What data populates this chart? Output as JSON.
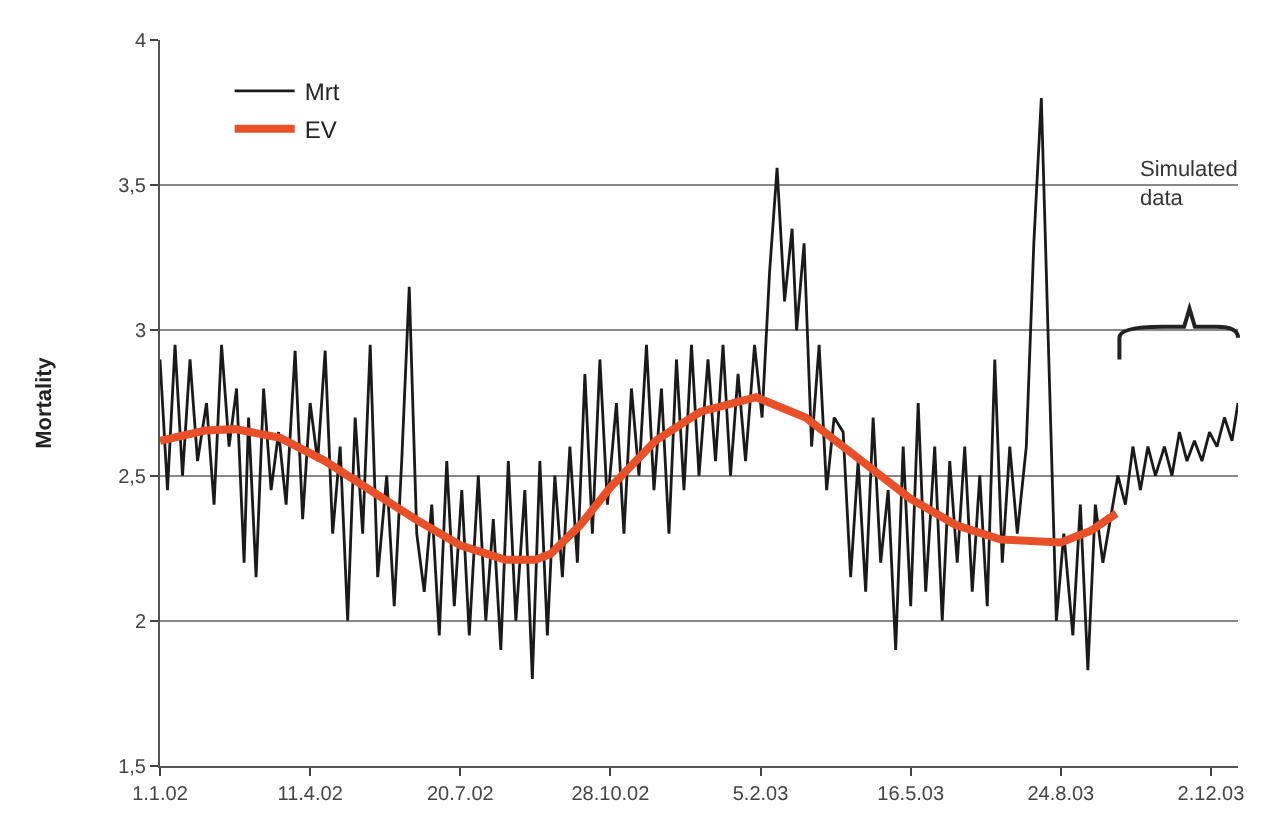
{
  "chart_data": {
    "type": "line",
    "ylabel": "Mortality",
    "annotations": [
      "Simulated data"
    ],
    "xlim": [
      "2002-01-01",
      "2003-12-20"
    ],
    "xticks": [
      {
        "value": "2002-01-01",
        "label": "1.1.02"
      },
      {
        "value": "2002-04-11",
        "label": "11.4.02"
      },
      {
        "value": "2002-07-20",
        "label": "20.7.02"
      },
      {
        "value": "2002-10-28",
        "label": "28.10.02"
      },
      {
        "value": "2003-02-05",
        "label": "5.2.03"
      },
      {
        "value": "2003-05-16",
        "label": "16.5.03"
      },
      {
        "value": "2003-08-24",
        "label": "24.8.03"
      },
      {
        "value": "2003-12-02",
        "label": "2.12.03"
      }
    ],
    "ylim": [
      1.5,
      4
    ],
    "yticks": [
      {
        "value": 1.5,
        "label": "1,5"
      },
      2,
      {
        "value": 2.5,
        "label": "2,5"
      },
      3,
      {
        "value": 3.5,
        "label": "3,5"
      },
      4
    ],
    "grid": "y",
    "legend": "top left",
    "marker": "none",
    "line_style": "solid",
    "series": [
      {
        "name": "Mrt",
        "color": "#1a1a1a",
        "x": [
          "2002-01-01",
          "2002-01-06",
          "2002-01-11",
          "2002-01-16",
          "2002-01-21",
          "2002-01-26",
          "2002-02-01",
          "2002-02-06",
          "2002-02-11",
          "2002-02-16",
          "2002-02-21",
          "2002-02-26",
          "2002-03-01",
          "2002-03-06",
          "2002-03-11",
          "2002-03-16",
          "2002-03-21",
          "2002-03-26",
          "2002-04-01",
          "2002-04-06",
          "2002-04-11",
          "2002-04-16",
          "2002-04-21",
          "2002-04-26",
          "2002-05-01",
          "2002-05-06",
          "2002-05-11",
          "2002-05-16",
          "2002-05-21",
          "2002-05-26",
          "2002-06-01",
          "2002-06-06",
          "2002-06-11",
          "2002-06-16",
          "2002-06-21",
          "2002-06-26",
          "2002-07-01",
          "2002-07-06",
          "2002-07-11",
          "2002-07-16",
          "2002-07-21",
          "2002-07-26",
          "2002-08-01",
          "2002-08-06",
          "2002-08-11",
          "2002-08-16",
          "2002-08-21",
          "2002-08-26",
          "2002-09-01",
          "2002-09-06",
          "2002-09-11",
          "2002-09-16",
          "2002-09-21",
          "2002-09-26",
          "2002-10-01",
          "2002-10-06",
          "2002-10-11",
          "2002-10-16",
          "2002-10-21",
          "2002-10-26",
          "2002-11-01",
          "2002-11-06",
          "2002-11-11",
          "2002-11-16",
          "2002-11-21",
          "2002-11-26",
          "2002-12-01",
          "2002-12-06",
          "2002-12-11",
          "2002-12-16",
          "2002-12-21",
          "2002-12-26",
          "2003-01-01",
          "2003-01-06",
          "2003-01-11",
          "2003-01-16",
          "2003-01-21",
          "2003-01-26",
          "2003-02-01",
          "2003-02-06",
          "2003-02-11",
          "2003-02-16",
          "2003-02-21",
          "2003-02-26",
          "2003-03-01",
          "2003-03-06",
          "2003-03-11",
          "2003-03-16",
          "2003-03-21",
          "2003-03-26",
          "2003-04-01",
          "2003-04-06",
          "2003-04-11",
          "2003-04-16",
          "2003-04-21",
          "2003-04-26",
          "2003-05-01",
          "2003-05-06",
          "2003-05-11",
          "2003-05-16",
          "2003-05-21",
          "2003-05-26",
          "2003-06-01",
          "2003-06-06",
          "2003-06-11",
          "2003-06-16",
          "2003-06-21",
          "2003-06-26",
          "2003-07-01",
          "2003-07-06",
          "2003-07-11",
          "2003-07-16",
          "2003-07-21",
          "2003-07-26",
          "2003-08-01",
          "2003-08-06",
          "2003-08-11",
          "2003-08-16",
          "2003-08-21",
          "2003-08-26",
          "2003-09-01",
          "2003-09-06",
          "2003-09-11",
          "2003-09-16",
          "2003-09-21",
          "2003-09-26",
          "2003-10-01",
          "2003-10-06",
          "2003-10-11",
          "2003-10-16",
          "2003-10-21",
          "2003-10-26",
          "2003-11-01",
          "2003-11-06",
          "2003-11-11",
          "2003-11-16",
          "2003-11-21",
          "2003-11-26",
          "2003-12-01",
          "2003-12-06",
          "2003-12-11",
          "2003-12-16",
          "2003-12-20"
        ],
        "values": [
          2.9,
          2.45,
          2.95,
          2.5,
          2.9,
          2.55,
          2.75,
          2.4,
          2.95,
          2.6,
          2.8,
          2.2,
          2.7,
          2.15,
          2.8,
          2.45,
          2.65,
          2.4,
          2.93,
          2.35,
          2.75,
          2.55,
          2.93,
          2.3,
          2.6,
          2.0,
          2.7,
          2.3,
          2.95,
          2.15,
          2.5,
          2.05,
          2.55,
          3.15,
          2.3,
          2.1,
          2.4,
          1.95,
          2.55,
          2.05,
          2.45,
          1.95,
          2.5,
          2.0,
          2.35,
          1.9,
          2.55,
          2.0,
          2.45,
          1.8,
          2.55,
          1.95,
          2.5,
          2.15,
          2.6,
          2.2,
          2.85,
          2.3,
          2.9,
          2.4,
          2.75,
          2.3,
          2.8,
          2.5,
          2.95,
          2.45,
          2.8,
          2.3,
          2.9,
          2.45,
          2.95,
          2.5,
          2.9,
          2.55,
          2.95,
          2.5,
          2.85,
          2.55,
          2.95,
          2.7,
          3.2,
          3.56,
          3.1,
          3.35,
          3.0,
          3.3,
          2.6,
          2.95,
          2.45,
          2.7,
          2.65,
          2.15,
          2.55,
          2.1,
          2.7,
          2.2,
          2.45,
          1.9,
          2.6,
          2.05,
          2.75,
          2.1,
          2.6,
          2.0,
          2.55,
          2.2,
          2.6,
          2.1,
          2.5,
          2.05,
          2.9,
          2.2,
          2.6,
          2.3,
          2.6,
          3.3,
          3.8,
          2.9,
          2.0,
          2.3,
          1.95,
          2.4,
          1.83,
          2.4,
          2.2,
          2.35,
          2.5,
          2.4,
          2.6,
          2.45,
          2.6,
          2.5,
          2.6,
          2.5,
          2.65,
          2.55,
          2.62,
          2.55,
          2.65,
          2.6,
          2.7,
          2.62,
          2.75
        ]
      },
      {
        "name": "EV",
        "color": "#e8502a",
        "x": [
          "2002-01-01",
          "2002-01-31",
          "2002-02-20",
          "2002-03-22",
          "2002-04-21",
          "2002-05-21",
          "2002-06-20",
          "2002-07-20",
          "2002-08-19",
          "2002-09-08",
          "2002-09-18",
          "2002-10-08",
          "2002-10-28",
          "2002-11-27",
          "2002-12-27",
          "2003-02-02",
          "2003-03-07",
          "2003-04-06",
          "2003-05-16",
          "2003-06-15",
          "2003-07-15",
          "2003-08-24",
          "2003-09-13",
          "2003-09-30"
        ],
        "values": [
          2.62,
          2.655,
          2.66,
          2.63,
          2.55,
          2.45,
          2.35,
          2.26,
          2.21,
          2.21,
          2.23,
          2.33,
          2.46,
          2.62,
          2.72,
          2.77,
          2.7,
          2.58,
          2.42,
          2.33,
          2.28,
          2.27,
          2.31,
          2.37
        ]
      }
    ]
  }
}
